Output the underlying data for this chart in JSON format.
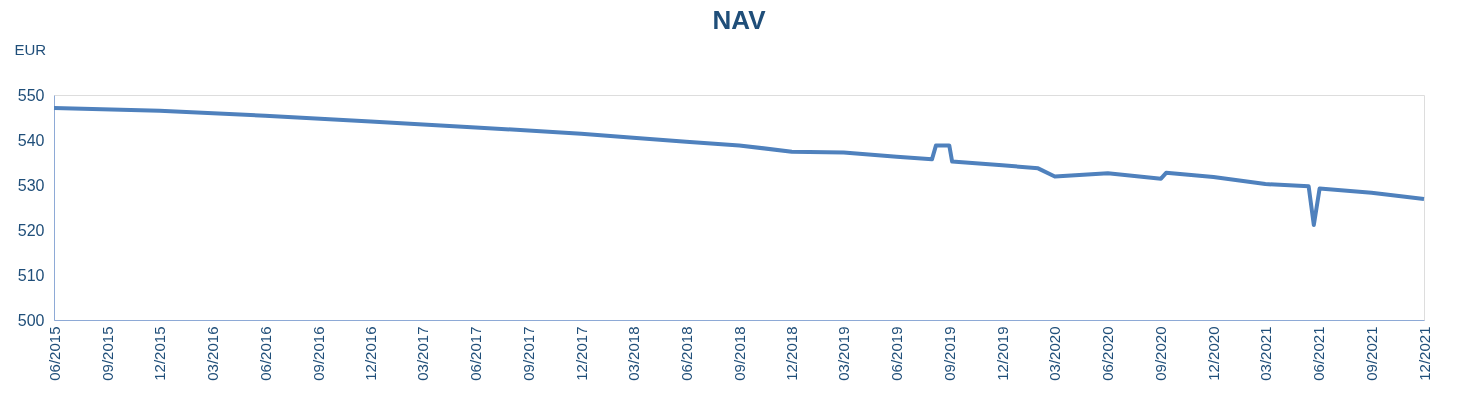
{
  "chart_data": {
    "type": "line",
    "title": "NAV",
    "ylabel": "EUR",
    "x": [
      "2015-06-01",
      "2015-12-01",
      "2016-06-01",
      "2016-12-01",
      "2017-06-01",
      "2017-12-01",
      "2018-03-01",
      "2018-06-01",
      "2018-09-01",
      "2018-12-01",
      "2019-03-01",
      "2019-06-01",
      "2019-08-01",
      "2019-08-08",
      "2019-08-31",
      "2019-09-05",
      "2019-12-01",
      "2020-02-01",
      "2020-03-01",
      "2020-06-01",
      "2020-09-01",
      "2020-09-10",
      "2020-12-01",
      "2021-03-01",
      "2021-05-15",
      "2021-05-24",
      "2021-06-03",
      "2021-09-01",
      "2021-12-01"
    ],
    "series": [
      {
        "color": "#4f81bd",
        "values": [
          547.1,
          546.5,
          545.4,
          544.1,
          542.8,
          541.4,
          540.5,
          539.6,
          538.8,
          537.4,
          537.2,
          536.3,
          535.7,
          538.8,
          538.8,
          535.2,
          534.4,
          533.7,
          531.9,
          532.6,
          531.4,
          532.7,
          531.8,
          530.2,
          529.7,
          521.1,
          529.2,
          528.3,
          526.9
        ]
      }
    ],
    "xlim": [
      "2015-06-01",
      "2021-12-01"
    ],
    "xticks": [
      {
        "value": "2015-06-01",
        "label": "06/2015"
      },
      {
        "value": "2015-09-01",
        "label": "09/2015"
      },
      {
        "value": "2015-12-01",
        "label": "12/2015"
      },
      {
        "value": "2016-03-01",
        "label": "03/2016"
      },
      {
        "value": "2016-06-01",
        "label": "06/2016"
      },
      {
        "value": "2016-09-01",
        "label": "09/2016"
      },
      {
        "value": "2016-12-01",
        "label": "12/2016"
      },
      {
        "value": "2017-03-01",
        "label": "03/2017"
      },
      {
        "value": "2017-06-01",
        "label": "06/2017"
      },
      {
        "value": "2017-09-01",
        "label": "09/2017"
      },
      {
        "value": "2017-12-01",
        "label": "12/2017"
      },
      {
        "value": "2018-03-01",
        "label": "03/2018"
      },
      {
        "value": "2018-06-01",
        "label": "06/2018"
      },
      {
        "value": "2018-09-01",
        "label": "09/2018"
      },
      {
        "value": "2018-12-01",
        "label": "12/2018"
      },
      {
        "value": "2019-03-01",
        "label": "03/2019"
      },
      {
        "value": "2019-06-01",
        "label": "06/2019"
      },
      {
        "value": "2019-09-01",
        "label": "09/2019"
      },
      {
        "value": "2019-12-01",
        "label": "12/2019"
      },
      {
        "value": "2020-03-01",
        "label": "03/2020"
      },
      {
        "value": "2020-06-01",
        "label": "06/2020"
      },
      {
        "value": "2020-09-01",
        "label": "09/2020"
      },
      {
        "value": "2020-12-01",
        "label": "12/2020"
      },
      {
        "value": "2021-03-01",
        "label": "03/2021"
      },
      {
        "value": "2021-06-01",
        "label": "06/2021"
      },
      {
        "value": "2021-09-01",
        "label": "09/2021"
      },
      {
        "value": "2021-12-01",
        "label": "12/2021"
      }
    ],
    "ylim": [
      500,
      550
    ],
    "yticks": [
      500,
      510,
      520,
      530,
      540,
      550
    ],
    "grid": false,
    "marker": "none",
    "line_style": "solid"
  }
}
